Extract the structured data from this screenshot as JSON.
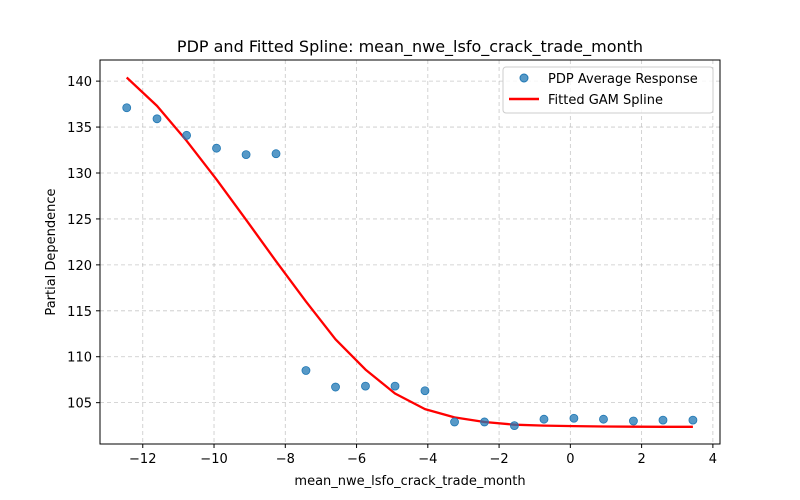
{
  "chart_data": {
    "type": "scatter",
    "title": "PDP and Fitted Spline: mean_nwe_lsfo_crack_trade_month",
    "xlabel": "mean_nwe_lsfo_crack_trade_month",
    "ylabel": "Partial Dependence",
    "xlim": [
      -13.2,
      4.2
    ],
    "ylim": [
      100.5,
      142.3
    ],
    "xticks": [
      -12,
      -10,
      -8,
      -6,
      -4,
      -2,
      0,
      2,
      4
    ],
    "xtick_labels": [
      "−12",
      "−10",
      "−8",
      "−6",
      "−4",
      "−2",
      "0",
      "2",
      "4"
    ],
    "yticks": [
      105,
      110,
      115,
      120,
      125,
      130,
      135,
      140
    ],
    "ytick_labels": [
      "105",
      "110",
      "115",
      "120",
      "125",
      "130",
      "135",
      "140"
    ],
    "grid": true,
    "legend_position": "top-right",
    "series": [
      {
        "name": "PDP Average Response",
        "kind": "scatter",
        "color": "#1f77b4",
        "x": [
          -12.45,
          -11.6,
          -10.77,
          -9.93,
          -9.1,
          -8.26,
          -7.42,
          -6.59,
          -5.75,
          -4.92,
          -4.08,
          -3.25,
          -2.41,
          -1.57,
          -0.74,
          0.1,
          0.93,
          1.77,
          2.6,
          3.44
        ],
        "y": [
          137.1,
          135.9,
          134.1,
          132.7,
          132.0,
          132.1,
          108.5,
          106.7,
          106.8,
          106.8,
          106.3,
          102.9,
          102.9,
          102.5,
          103.2,
          103.3,
          103.2,
          103.0,
          103.1,
          103.1
        ]
      },
      {
        "name": "Fitted GAM Spline",
        "kind": "line",
        "color": "#ff0000",
        "x": [
          -12.45,
          -11.6,
          -10.77,
          -9.93,
          -9.1,
          -8.26,
          -7.42,
          -6.59,
          -5.75,
          -4.92,
          -4.08,
          -3.25,
          -2.41,
          -1.57,
          -0.74,
          0.1,
          0.93,
          1.77,
          2.6,
          3.44
        ],
        "y": [
          140.4,
          137.3,
          133.5,
          129.3,
          124.9,
          120.4,
          116.0,
          111.9,
          108.6,
          106.0,
          104.3,
          103.4,
          102.9,
          102.6,
          102.5,
          102.45,
          102.4,
          102.38,
          102.37,
          102.37
        ]
      }
    ]
  }
}
